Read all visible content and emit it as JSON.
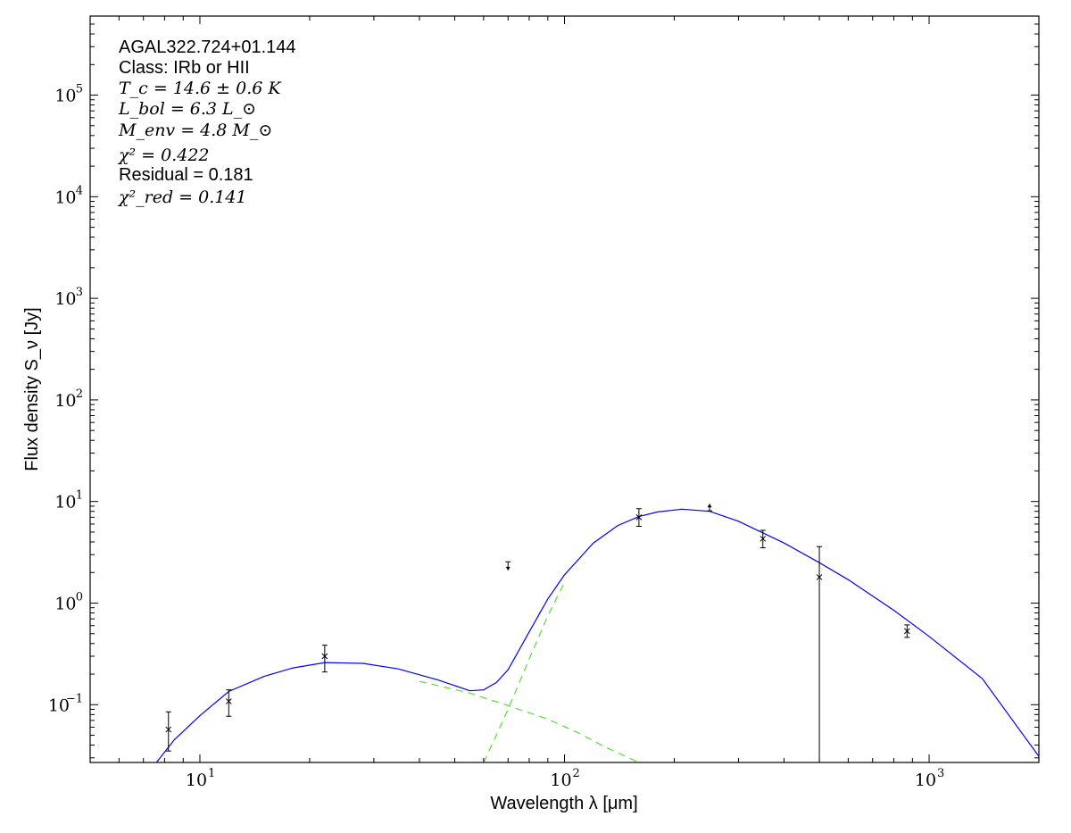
{
  "chart_data": {
    "type": "line",
    "xscale": "log",
    "yscale": "log",
    "xlim": [
      5,
      2000
    ],
    "ylim": [
      0.027,
      600000
    ],
    "xlabel": "Wavelength λ [μm]",
    "ylabel": "Flux density S_ν [Jy]",
    "x_ticks": [
      {
        "base": "10",
        "exp": "1",
        "value": 10
      },
      {
        "base": "10",
        "exp": "2",
        "value": 100
      },
      {
        "base": "10",
        "exp": "3",
        "value": 1000
      }
    ],
    "y_ticks": [
      {
        "base": "10",
        "exp": "−1",
        "value": 0.1
      },
      {
        "base": "10",
        "exp": "0",
        "value": 1
      },
      {
        "base": "10",
        "exp": "1",
        "value": 10
      },
      {
        "base": "10",
        "exp": "2",
        "value": 100
      },
      {
        "base": "10",
        "exp": "3",
        "value": 1000
      },
      {
        "base": "10",
        "exp": "4",
        "value": 10000
      },
      {
        "base": "10",
        "exp": "5",
        "value": 100000
      }
    ],
    "annotations": {
      "source": "AGAL322.724+01.144",
      "class": "Class: IRb or HII",
      "tc": "T_c = 14.6 ± 0.6 K",
      "lbol": "L_bol = 6.3 L_⊙",
      "menv": "M_env = 4.8 M_⊙",
      "chi2": "χ² = 0.422",
      "residual": "Residual = 0.181",
      "chi2_red": "χ²_red = 0.141"
    },
    "series": [
      {
        "style": "solid",
        "color": "#0000ff",
        "x": [
          7.6,
          8.5,
          10,
          12,
          15,
          18,
          22,
          28,
          35,
          45,
          55,
          60,
          65,
          70,
          80,
          90,
          100,
          120,
          140,
          160,
          180,
          210,
          250,
          300,
          400,
          500,
          600,
          800,
          1000,
          1400,
          2000
        ],
        "y": [
          0.027,
          0.045,
          0.078,
          0.135,
          0.19,
          0.23,
          0.26,
          0.255,
          0.225,
          0.175,
          0.137,
          0.14,
          0.165,
          0.22,
          0.52,
          1.1,
          1.9,
          3.9,
          5.8,
          7.1,
          7.9,
          8.4,
          8.0,
          6.4,
          3.9,
          2.5,
          1.7,
          0.85,
          0.47,
          0.18,
          0.031
        ]
      },
      {
        "style": "dashed",
        "color": "#55dd33",
        "x": [
          40,
          55,
          70,
          90,
          110,
          130,
          160
        ],
        "y": [
          0.17,
          0.13,
          0.098,
          0.072,
          0.052,
          0.038,
          0.027
        ]
      },
      {
        "style": "dashed",
        "color": "#55dd33",
        "x": [
          60,
          65,
          70,
          80,
          90,
          100
        ],
        "y": [
          0.027,
          0.05,
          0.09,
          0.28,
          0.75,
          1.6
        ]
      }
    ],
    "points": [
      {
        "x": 8.2,
        "y": 0.057,
        "ylo": 0.035,
        "yhi": 0.085
      },
      {
        "x": 12,
        "y": 0.108,
        "ylo": 0.077,
        "yhi": 0.14
      },
      {
        "x": 22,
        "y": 0.3,
        "ylo": 0.21,
        "yhi": 0.385
      },
      {
        "x": 160,
        "y": 7.0,
        "ylo": 5.7,
        "yhi": 8.5
      },
      {
        "x": 350,
        "y": 4.3,
        "ylo": 3.5,
        "yhi": 5.2
      },
      {
        "x": 500,
        "y": 1.8,
        "ylo": 0.027,
        "yhi": 3.6
      },
      {
        "x": 870,
        "y": 0.53,
        "ylo": 0.46,
        "yhi": 0.61
      }
    ],
    "limits": [
      {
        "x": 70,
        "y": 2.55,
        "to": 2.1,
        "kind": "upper"
      },
      {
        "x": 250,
        "y": 8.1,
        "to": 9.5,
        "kind": "lower"
      }
    ]
  }
}
